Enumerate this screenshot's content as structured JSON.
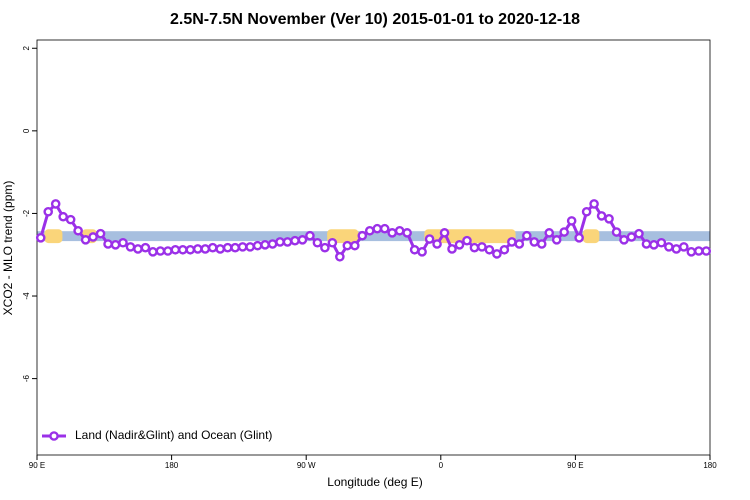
{
  "chart_data": {
    "type": "line",
    "title": "2.5N-7.5N November (Ver 10)   2015-01-01 to 2020-12-18",
    "x_label": "Longitude (deg E)",
    "y_label": "XCO2 - MLO trend (ppm)",
    "xlim": [
      90,
      540
    ],
    "ylim": [
      -7.85,
      2.2
    ],
    "xticks": [
      {
        "value": 90,
        "label": "90 E"
      },
      {
        "value": 180,
        "label": "180"
      },
      {
        "value": 270,
        "label": "90 W"
      },
      {
        "value": 360,
        "label": "0"
      },
      {
        "value": 450,
        "label": "90 E"
      },
      {
        "value": 540,
        "label": "180"
      }
    ],
    "yticks": [
      2,
      0,
      -2,
      -4,
      -6
    ],
    "background_band": {
      "y": [
        -2.67,
        -2.43
      ],
      "color": "#a7bfdf"
    },
    "land_spans": {
      "color": "#fad57a",
      "x": [
        [
          95,
          107
        ],
        [
          120,
          130
        ],
        [
          284,
          305
        ],
        [
          349,
          410
        ],
        [
          455,
          466
        ]
      ]
    },
    "legend": "bottom-left",
    "x": [
      92.5,
      97.5,
      102.5,
      107.5,
      112.5,
      117.5,
      122.5,
      127.5,
      132.5,
      137.5,
      142.5,
      147.5,
      152.5,
      157.5,
      162.5,
      167.5,
      172.5,
      177.5,
      182.5,
      187.5,
      192.5,
      197.5,
      202.5,
      207.5,
      212.5,
      217.5,
      222.5,
      227.5,
      232.5,
      237.5,
      242.5,
      247.5,
      252.5,
      257.5,
      262.5,
      267.5,
      272.5,
      277.5,
      282.5,
      287.5,
      292.5,
      297.5,
      302.5,
      307.5,
      312.5,
      317.5,
      322.5,
      327.5,
      332.5,
      337.5,
      342.5,
      347.5,
      352.5,
      357.5,
      362.5,
      367.5,
      372.5,
      377.5,
      382.5,
      387.5,
      392.5,
      397.5,
      402.5,
      407.5,
      412.5,
      417.5,
      422.5,
      427.5,
      432.5,
      437.5,
      442.5,
      447.5,
      452.5,
      457.5,
      462.5,
      467.5,
      472.5,
      477.5,
      482.5,
      487.5,
      492.5,
      497.5,
      502.5,
      507.5,
      512.5,
      517.5,
      522.5,
      527.5,
      532.5,
      537.5
    ],
    "series": [
      {
        "name": "Land (Nadir&Glint) and Ocean (Glint)",
        "color": "#9b30e8",
        "values": [
          -2.59,
          -1.96,
          -1.77,
          -2.08,
          -2.15,
          -2.42,
          -2.64,
          -2.57,
          -2.49,
          -2.74,
          -2.76,
          -2.71,
          -2.81,
          -2.86,
          -2.83,
          -2.93,
          -2.91,
          -2.91,
          -2.88,
          -2.88,
          -2.88,
          -2.86,
          -2.86,
          -2.83,
          -2.86,
          -2.83,
          -2.83,
          -2.81,
          -2.81,
          -2.78,
          -2.76,
          -2.74,
          -2.69,
          -2.69,
          -2.66,
          -2.64,
          -2.54,
          -2.71,
          -2.83,
          -2.71,
          -3.05,
          -2.78,
          -2.78,
          -2.54,
          -2.42,
          -2.37,
          -2.37,
          -2.47,
          -2.42,
          -2.47,
          -2.88,
          -2.93,
          -2.62,
          -2.74,
          -2.47,
          -2.86,
          -2.76,
          -2.66,
          -2.83,
          -2.81,
          -2.88,
          -2.98,
          -2.88,
          -2.69,
          -2.74,
          -2.54,
          -2.69,
          -2.74,
          -2.47,
          -2.64,
          -2.45,
          -2.18,
          -2.59,
          -1.96,
          -1.77,
          -2.06,
          -2.13,
          -2.45,
          -2.64,
          -2.57,
          -2.49,
          -2.74,
          -2.76,
          -2.71,
          -2.81,
          -2.86,
          -2.81,
          -2.93,
          -2.91,
          -2.91
        ]
      }
    ]
  }
}
